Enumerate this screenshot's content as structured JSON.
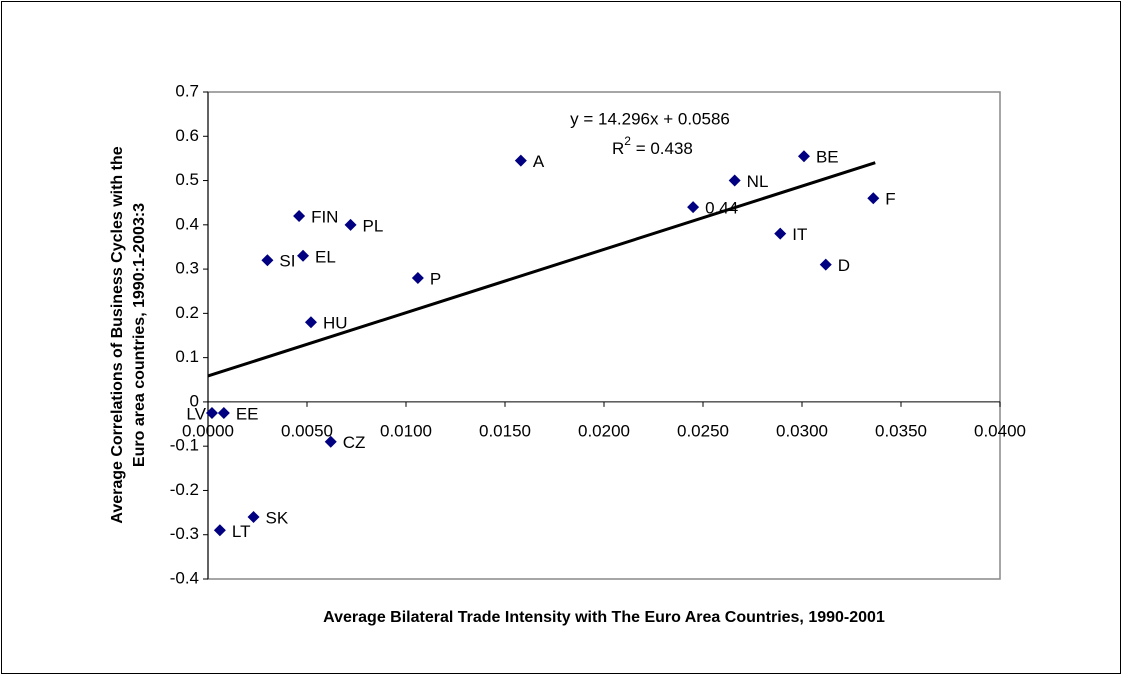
{
  "chart_data": {
    "type": "scatter",
    "x_label": "Average Bilateral Trade Intensity with The Euro Area Countries, 1990-2001",
    "y_label": [
      "Average Correlations of Business Cycles with the",
      "Euro area countries, 1990:1-2003:3"
    ],
    "x": [
      0.0002,
      0.0008,
      0.0006,
      0.0023,
      0.003,
      0.0046,
      0.0048,
      0.0052,
      0.0072,
      0.0062,
      0.0106,
      0.0158,
      0.0245,
      0.0266,
      0.0301,
      0.0289,
      0.0336,
      0.0312
    ],
    "values": [
      -0.025,
      -0.025,
      -0.29,
      -0.26,
      0.32,
      0.42,
      0.33,
      0.18,
      0.4,
      -0.09,
      0.28,
      0.545,
      0.44,
      0.5,
      0.555,
      0.38,
      0.46,
      0.31
    ],
    "labels": [
      "LV",
      "EE",
      "LT",
      "SK",
      "SI",
      "FIN",
      "EL",
      "HU",
      "PL",
      "CZ",
      "P",
      "A",
      "0.44",
      "NL",
      "BE",
      "IT",
      "F",
      "D"
    ],
    "color": "#000080",
    "trendline": {
      "slope": 14.296,
      "intercept": 0.0586,
      "xrange": [
        0,
        0.0337
      ],
      "color": "#000000",
      "equation": "y = 14.296x + 0.0586",
      "r2": {
        "base": "R",
        "sup": "2",
        "rest": " = 0.438"
      }
    },
    "xlim": [
      0,
      0.04
    ],
    "xticks": [
      {
        "value": 0,
        "label": "0.0000"
      },
      {
        "value": 0.005,
        "label": "0.0050"
      },
      {
        "value": 0.01,
        "label": "0.0100"
      },
      {
        "value": 0.015,
        "label": "0.0150"
      },
      {
        "value": 0.02,
        "label": "0.0200"
      },
      {
        "value": 0.025,
        "label": "0.0250"
      },
      {
        "value": 0.03,
        "label": "0.0300"
      },
      {
        "value": 0.035,
        "label": "0.0350"
      },
      {
        "value": 0.04,
        "label": "0.0400"
      }
    ],
    "ylim": [
      -0.4,
      0.7
    ],
    "yticks": [
      -0.4,
      -0.3,
      -0.2,
      -0.1,
      0,
      0.1,
      0.2,
      0.3,
      0.4,
      0.5,
      0.6,
      0.7
    ],
    "grid": false
  }
}
